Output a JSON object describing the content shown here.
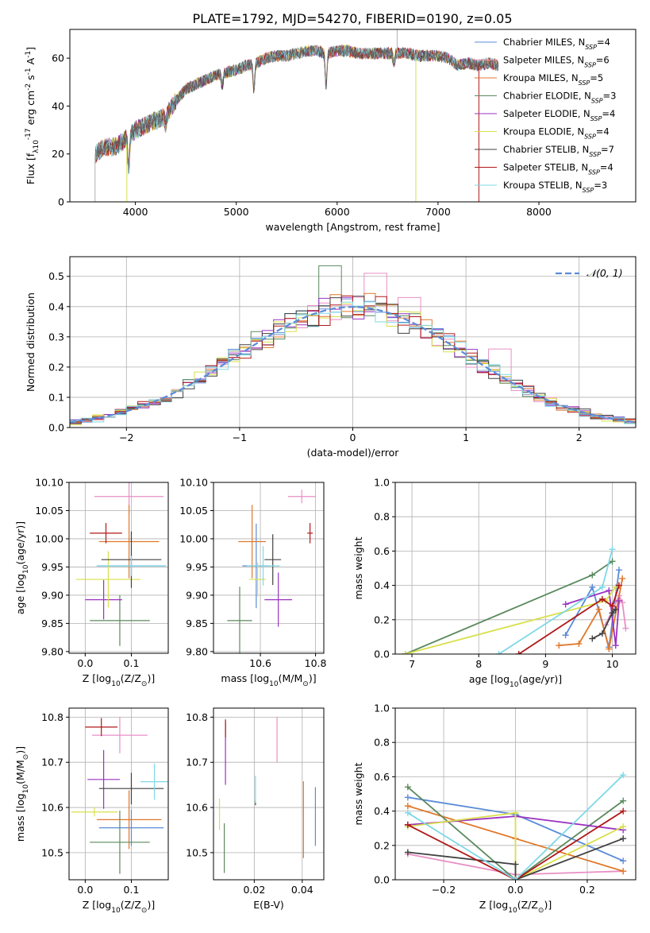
{
  "figure_title": "PLATE=1792, MJD=54270, FIBERID=0190, z=0.05",
  "models": [
    {
      "name": "Chabrier MILES",
      "n_ssp": "4",
      "color": "#5b8bd7"
    },
    {
      "name": "Salpeter MILES",
      "n_ssp": "6",
      "color": "#e88fc4"
    },
    {
      "name": "Kroupa MILES",
      "n_ssp": "5",
      "color": "#e0772a"
    },
    {
      "name": "Chabrier ELODIE",
      "n_ssp": "3",
      "color": "#5a8a5e"
    },
    {
      "name": "Salpeter ELODIE",
      "n_ssp": "4",
      "color": "#9a33c0"
    },
    {
      "name": "Kroupa ELODIE",
      "n_ssp": "4",
      "color": "#d8e04a"
    },
    {
      "name": "Chabrier STELIB",
      "n_ssp": "7",
      "color": "#404040"
    },
    {
      "name": "Salpeter STELIB",
      "n_ssp": "4",
      "color": "#b01818"
    },
    {
      "name": "Kroupa STELIB",
      "n_ssp": "3",
      "color": "#7fd8e6"
    }
  ],
  "chart_data": [
    {
      "id": "spectrum",
      "type": "line",
      "xlabel": "wavelength [Angstrom, rest frame]",
      "ylabel_main": "Flux [f",
      "ylabel_parts": [
        "λ",
        "10",
        "-17",
        " erg cm",
        "-2",
        " s",
        "-1",
        " A",
        "-1",
        "]"
      ],
      "xlim": [
        3350,
        8960
      ],
      "ylim": [
        0,
        72
      ],
      "xticks": [
        4000,
        5000,
        6000,
        7000,
        8000
      ],
      "yticks": [
        0,
        20,
        40,
        60
      ],
      "grid": false,
      "legend_position": "right",
      "continuum": {
        "x": [
          3600,
          3700,
          3800,
          3900,
          4000,
          4100,
          4200,
          4300,
          4400,
          4500,
          4600,
          4700,
          4800,
          4900,
          5000,
          5100,
          5200,
          5300,
          5400,
          5500,
          5600,
          5700,
          5800,
          5900,
          6000,
          6100,
          6200,
          6300,
          6400,
          6500,
          6600,
          6700,
          6800,
          6900,
          7000,
          7100,
          7200,
          7300,
          7400,
          7500,
          7600
        ],
        "y": [
          20,
          23,
          23,
          26,
          30,
          32,
          34,
          36,
          42,
          47,
          49,
          51,
          53,
          54,
          55,
          57,
          58,
          60,
          61,
          61,
          62,
          63,
          63,
          62,
          63,
          63,
          62,
          62,
          62,
          62,
          62,
          62,
          61,
          61,
          61,
          60,
          57,
          58,
          57,
          58,
          57
        ]
      },
      "features": [
        {
          "x": 3933,
          "y": 14
        },
        {
          "x": 4300,
          "y": 32
        },
        {
          "x": 4861,
          "y": 48
        },
        {
          "x": 5175,
          "y": 47
        },
        {
          "x": 5890,
          "y": 48
        },
        {
          "x": 6563,
          "y": 58
        }
      ],
      "spikes": [
        {
          "x": 3600,
          "y0": 0,
          "y1": 20,
          "color": "#b0b0b0"
        },
        {
          "x": 3915,
          "y0": 0,
          "y1": 24,
          "color": "#d8e04a"
        },
        {
          "x": 6595,
          "y0": 60,
          "y1": 72,
          "color": "#b0b0b0"
        },
        {
          "x": 6780,
          "y0": 0,
          "y1": 60,
          "color": "#d8e04a"
        },
        {
          "x": 7405,
          "y0": 0,
          "y1": 58,
          "color": "#b01818"
        }
      ]
    },
    {
      "id": "residuals",
      "type": "histogram",
      "xlabel": "(data-model)/error",
      "ylabel": "Normed distribution",
      "xlim": [
        -2.5,
        2.5
      ],
      "ylim": [
        0,
        0.565
      ],
      "xticks": [
        -2,
        -1,
        0,
        1,
        2
      ],
      "yticks": [
        0.0,
        0.1,
        0.2,
        0.3,
        0.4,
        0.5
      ],
      "grid": true,
      "bin_width": 0.1,
      "legend": "𝒩(0, 1)",
      "legend_position": "top-right",
      "reference_curve": {
        "mean": 0,
        "sigma": 1,
        "color": "#5b8bd7"
      },
      "bins_noise_seed": 7,
      "highlight_bins": [
        {
          "x": -0.2,
          "y": 0.535,
          "model": 3
        },
        {
          "x": 0.2,
          "y": 0.51,
          "model": 1
        },
        {
          "x": 1.3,
          "y": 0.26,
          "model": 1
        },
        {
          "x": 0.5,
          "y": 0.43,
          "model": 1
        }
      ]
    },
    {
      "id": "age_vs_Z",
      "type": "errorbar",
      "xlabel": "Z [log",
      "xlabel_parts": [
        "10",
        "(Z/Z",
        "⊙",
        ")]"
      ],
      "ylabel": "age  [log",
      "ylabel_parts": [
        "10",
        "(age/yr)]"
      ],
      "xlim": [
        -0.035,
        0.18
      ],
      "ylim": [
        9.797,
        10.1
      ],
      "xticks": [
        0.0,
        0.1
      ],
      "yticks": [
        9.8,
        9.85,
        9.9,
        9.95,
        10.0,
        10.05,
        10.1
      ],
      "grid": true,
      "points": [
        {
          "model": 0,
          "x": 0.1,
          "xerr": 0.075,
          "y": 9.952,
          "yerr": 0.02
        },
        {
          "model": 1,
          "x": 0.095,
          "xerr": 0.075,
          "y": 10.075,
          "yerr": 0.03
        },
        {
          "model": 2,
          "x": 0.095,
          "xerr": 0.065,
          "y": 9.995,
          "yerr": 0.065
        },
        {
          "model": 3,
          "x": 0.075,
          "xerr": 0.065,
          "y": 9.855,
          "yerr": 0.045
        },
        {
          "model": 4,
          "x": 0.04,
          "xerr": 0.04,
          "y": 9.892,
          "yerr": 0.035
        },
        {
          "model": 5,
          "x": 0.05,
          "xerr": 0.07,
          "y": 9.928,
          "yerr": 0.05
        },
        {
          "model": 6,
          "x": 0.1,
          "xerr": 0.065,
          "y": 9.963,
          "yerr": 0.05
        },
        {
          "model": 7,
          "x": 0.045,
          "xerr": 0.035,
          "y": 10.01,
          "yerr": 0.018
        },
        {
          "model": 8,
          "x": 0.1,
          "xerr": 0.075,
          "y": 9.952,
          "yerr": 0.018
        }
      ]
    },
    {
      "id": "age_vs_mass",
      "type": "errorbar",
      "xlabel": "mass [log",
      "xlabel_parts": [
        "10",
        "(M/M",
        "⊙",
        ")]"
      ],
      "xlim": [
        10.43,
        10.83
      ],
      "ylim": [
        9.797,
        10.1
      ],
      "xticks": [
        10.6,
        10.8
      ],
      "yticks": [
        9.8,
        9.85,
        9.9,
        9.95,
        10.0,
        10.05,
        10.1
      ],
      "grid": true,
      "points": [
        {
          "model": 0,
          "x": 10.585,
          "xerr": 0.05,
          "y": 9.952,
          "yerr": 0.075
        },
        {
          "model": 1,
          "x": 10.75,
          "xerr": 0.05,
          "y": 10.075,
          "yerr": 0.012
        },
        {
          "model": 2,
          "x": 10.57,
          "xerr": 0.05,
          "y": 9.995,
          "yerr": 0.065
        },
        {
          "model": 3,
          "x": 10.525,
          "xerr": 0.045,
          "y": 9.855,
          "yerr": 0.06
        },
        {
          "model": 4,
          "x": 10.665,
          "xerr": 0.05,
          "y": 9.892,
          "yerr": 0.048
        },
        {
          "model": 5,
          "x": 10.59,
          "xerr": 0.03,
          "y": 9.928,
          "yerr": 0.03
        },
        {
          "model": 6,
          "x": 10.645,
          "xerr": 0.03,
          "y": 9.963,
          "yerr": 0.045
        },
        {
          "model": 7,
          "x": 10.78,
          "xerr": 0.01,
          "y": 10.01,
          "yerr": 0.018
        },
        {
          "model": 8,
          "x": 10.61,
          "xerr": 0.06,
          "y": 9.952,
          "yerr": 0.035
        }
      ]
    },
    {
      "id": "weight_vs_age",
      "type": "line",
      "xlabel": "age  [log",
      "xlabel_parts": [
        "10",
        "(age/yr)]"
      ],
      "ylabel": "mass weight",
      "xlim": [
        6.75,
        10.35
      ],
      "ylim": [
        0,
        1
      ],
      "xticks": [
        7,
        8,
        9,
        10
      ],
      "yticks": [
        0.0,
        0.2,
        0.4,
        0.6,
        0.8,
        1.0
      ],
      "grid": true,
      "series": [
        {
          "model": 0,
          "x": [
            9.3,
            9.7,
            9.95,
            10.1
          ],
          "y": [
            0.11,
            0.39,
            0.04,
            0.49
          ]
        },
        {
          "model": 1,
          "x": [
            9.9,
            10.1,
            10.15,
            10.2
          ],
          "y": [
            0.17,
            0.34,
            0.3,
            0.15
          ]
        },
        {
          "model": 2,
          "x": [
            9.2,
            9.5,
            9.8,
            9.95,
            10.15
          ],
          "y": [
            0.05,
            0.06,
            0.26,
            0.03,
            0.44
          ]
        },
        {
          "model": 3,
          "x": [
            6.9,
            9.7,
            10.0
          ],
          "y": [
            0.0,
            0.46,
            0.54
          ]
        },
        {
          "model": 4,
          "x": [
            9.3,
            9.95,
            10.05,
            10.1
          ],
          "y": [
            0.29,
            0.37,
            0.05,
            0.31
          ]
        },
        {
          "model": 5,
          "x": [
            6.9,
            9.9,
            10.05
          ],
          "y": [
            0.0,
            0.31,
            0.39
          ]
        },
        {
          "model": 6,
          "x": [
            9.7,
            9.85,
            10.0,
            10.05
          ],
          "y": [
            0.09,
            0.12,
            0.24,
            0.26
          ]
        },
        {
          "model": 7,
          "x": [
            8.6,
            9.85,
            10.0,
            10.1
          ],
          "y": [
            0.0,
            0.32,
            0.28,
            0.4
          ]
        },
        {
          "model": 8,
          "x": [
            8.3,
            9.85,
            10.0
          ],
          "y": [
            0.0,
            0.39,
            0.61
          ]
        }
      ]
    },
    {
      "id": "mass_vs_Z",
      "type": "errorbar",
      "xlabel": "Z [log",
      "xlabel_parts": [
        "10",
        "(Z/Z",
        "⊙",
        ")]"
      ],
      "ylabel": "mass [log",
      "ylabel_parts": [
        "10",
        "(M/M",
        "⊙",
        ")]"
      ],
      "xlim": [
        -0.035,
        0.18
      ],
      "ylim": [
        10.44,
        10.82
      ],
      "xticks": [
        0.0,
        0.1
      ],
      "yticks": [
        10.5,
        10.6,
        10.7,
        10.8
      ],
      "grid": true,
      "points": [
        {
          "model": 0,
          "x": 0.1,
          "xerr": 0.07,
          "y": 10.555,
          "yerr": 0.04
        },
        {
          "model": 1,
          "x": 0.075,
          "xerr": 0.06,
          "y": 10.76,
          "yerr": 0.04
        },
        {
          "model": 2,
          "x": 0.095,
          "xerr": 0.07,
          "y": 10.573,
          "yerr": 0.065
        },
        {
          "model": 3,
          "x": 0.075,
          "xerr": 0.065,
          "y": 10.523,
          "yerr": 0.07
        },
        {
          "model": 4,
          "x": 0.04,
          "xerr": 0.035,
          "y": 10.662,
          "yerr": 0.065
        },
        {
          "model": 5,
          "x": 0.02,
          "xerr": 0.05,
          "y": 10.59,
          "yerr": 0.01
        },
        {
          "model": 6,
          "x": 0.1,
          "xerr": 0.07,
          "y": 10.642,
          "yerr": 0.035
        },
        {
          "model": 7,
          "x": 0.035,
          "xerr": 0.035,
          "y": 10.778,
          "yerr": 0.02
        },
        {
          "model": 8,
          "x": 0.15,
          "xerr": 0.03,
          "y": 10.657,
          "yerr": 0.04
        }
      ]
    },
    {
      "id": "mass_vs_EBV",
      "type": "errorbar",
      "xlabel": "E(B-V)",
      "xlim": [
        0.003,
        0.049
      ],
      "ylim": [
        10.44,
        10.82
      ],
      "xticks": [
        0.02,
        0.04
      ],
      "yticks": [
        10.5,
        10.6,
        10.7,
        10.8
      ],
      "grid": true,
      "points": [
        {
          "model": 0,
          "x": 0.0455,
          "xerr": 0,
          "y": 10.58,
          "yerr": 0.065
        },
        {
          "model": 1,
          "x": 0.0295,
          "xerr": 0,
          "y": 10.75,
          "yerr": 0.05
        },
        {
          "model": 2,
          "x": 0.0405,
          "xerr": 0,
          "y": 10.573,
          "yerr": 0.085
        },
        {
          "model": 3,
          "x": 0.0075,
          "xerr": 0,
          "y": 10.51,
          "yerr": 0.055
        },
        {
          "model": 4,
          "x": 0.008,
          "xerr": 0,
          "y": 10.72,
          "yerr": 0.07
        },
        {
          "model": 5,
          "x": 0.0055,
          "xerr": 0,
          "y": 10.585,
          "yerr": 0.035
        },
        {
          "model": 6,
          "x": 0.0205,
          "xerr": 0,
          "y": 10.61,
          "yerr": 0.005
        },
        {
          "model": 7,
          "x": 0.008,
          "xerr": 0,
          "y": 10.775,
          "yerr": 0.02
        },
        {
          "model": 8,
          "x": 0.0205,
          "xerr": 0,
          "y": 10.64,
          "yerr": 0.03
        }
      ]
    },
    {
      "id": "weight_vs_Z",
      "type": "line",
      "xlabel": "Z [log",
      "xlabel_parts": [
        "10",
        "(Z/Z",
        "⊙",
        ")]"
      ],
      "ylabel": "mass weight",
      "xlim": [
        -0.335,
        0.335
      ],
      "ylim": [
        0,
        1
      ],
      "xticks": [
        -0.2,
        0.0,
        0.2
      ],
      "yticks": [
        0.0,
        0.2,
        0.4,
        0.6,
        0.8,
        1.0
      ],
      "grid": true,
      "series": [
        {
          "model": 0,
          "x": [
            -0.3,
            0.0,
            0.3
          ],
          "y": [
            0.48,
            0.38,
            0.11
          ]
        },
        {
          "model": 1,
          "x": [
            -0.3,
            0.0,
            0.3
          ],
          "y": [
            0.15,
            0.03,
            0.05
          ]
        },
        {
          "model": 2,
          "x": [
            -0.3,
            0.0,
            0.3
          ],
          "y": [
            0.43,
            0.24,
            0.05
          ]
        },
        {
          "model": 3,
          "x": [
            -0.3,
            0.0,
            0.3
          ],
          "y": [
            0.54,
            0.0,
            0.46
          ]
        },
        {
          "model": 4,
          "x": [
            -0.3,
            0.0,
            0.3
          ],
          "y": [
            0.32,
            0.37,
            0.29
          ]
        },
        {
          "model": 5,
          "x": [
            -0.3,
            0.0,
            0.0,
            0.3
          ],
          "y": [
            0.31,
            0.39,
            0.0,
            0.31
          ]
        },
        {
          "model": 6,
          "x": [
            -0.3,
            0.0,
            0.0,
            0.3
          ],
          "y": [
            0.16,
            0.09,
            0.0,
            0.24
          ]
        },
        {
          "model": 7,
          "x": [
            -0.3,
            0.0,
            0.3
          ],
          "y": [
            0.32,
            0.0,
            0.4
          ]
        },
        {
          "model": 8,
          "x": [
            -0.3,
            0.0,
            0.3
          ],
          "y": [
            0.39,
            0.0,
            0.61
          ]
        }
      ]
    }
  ]
}
